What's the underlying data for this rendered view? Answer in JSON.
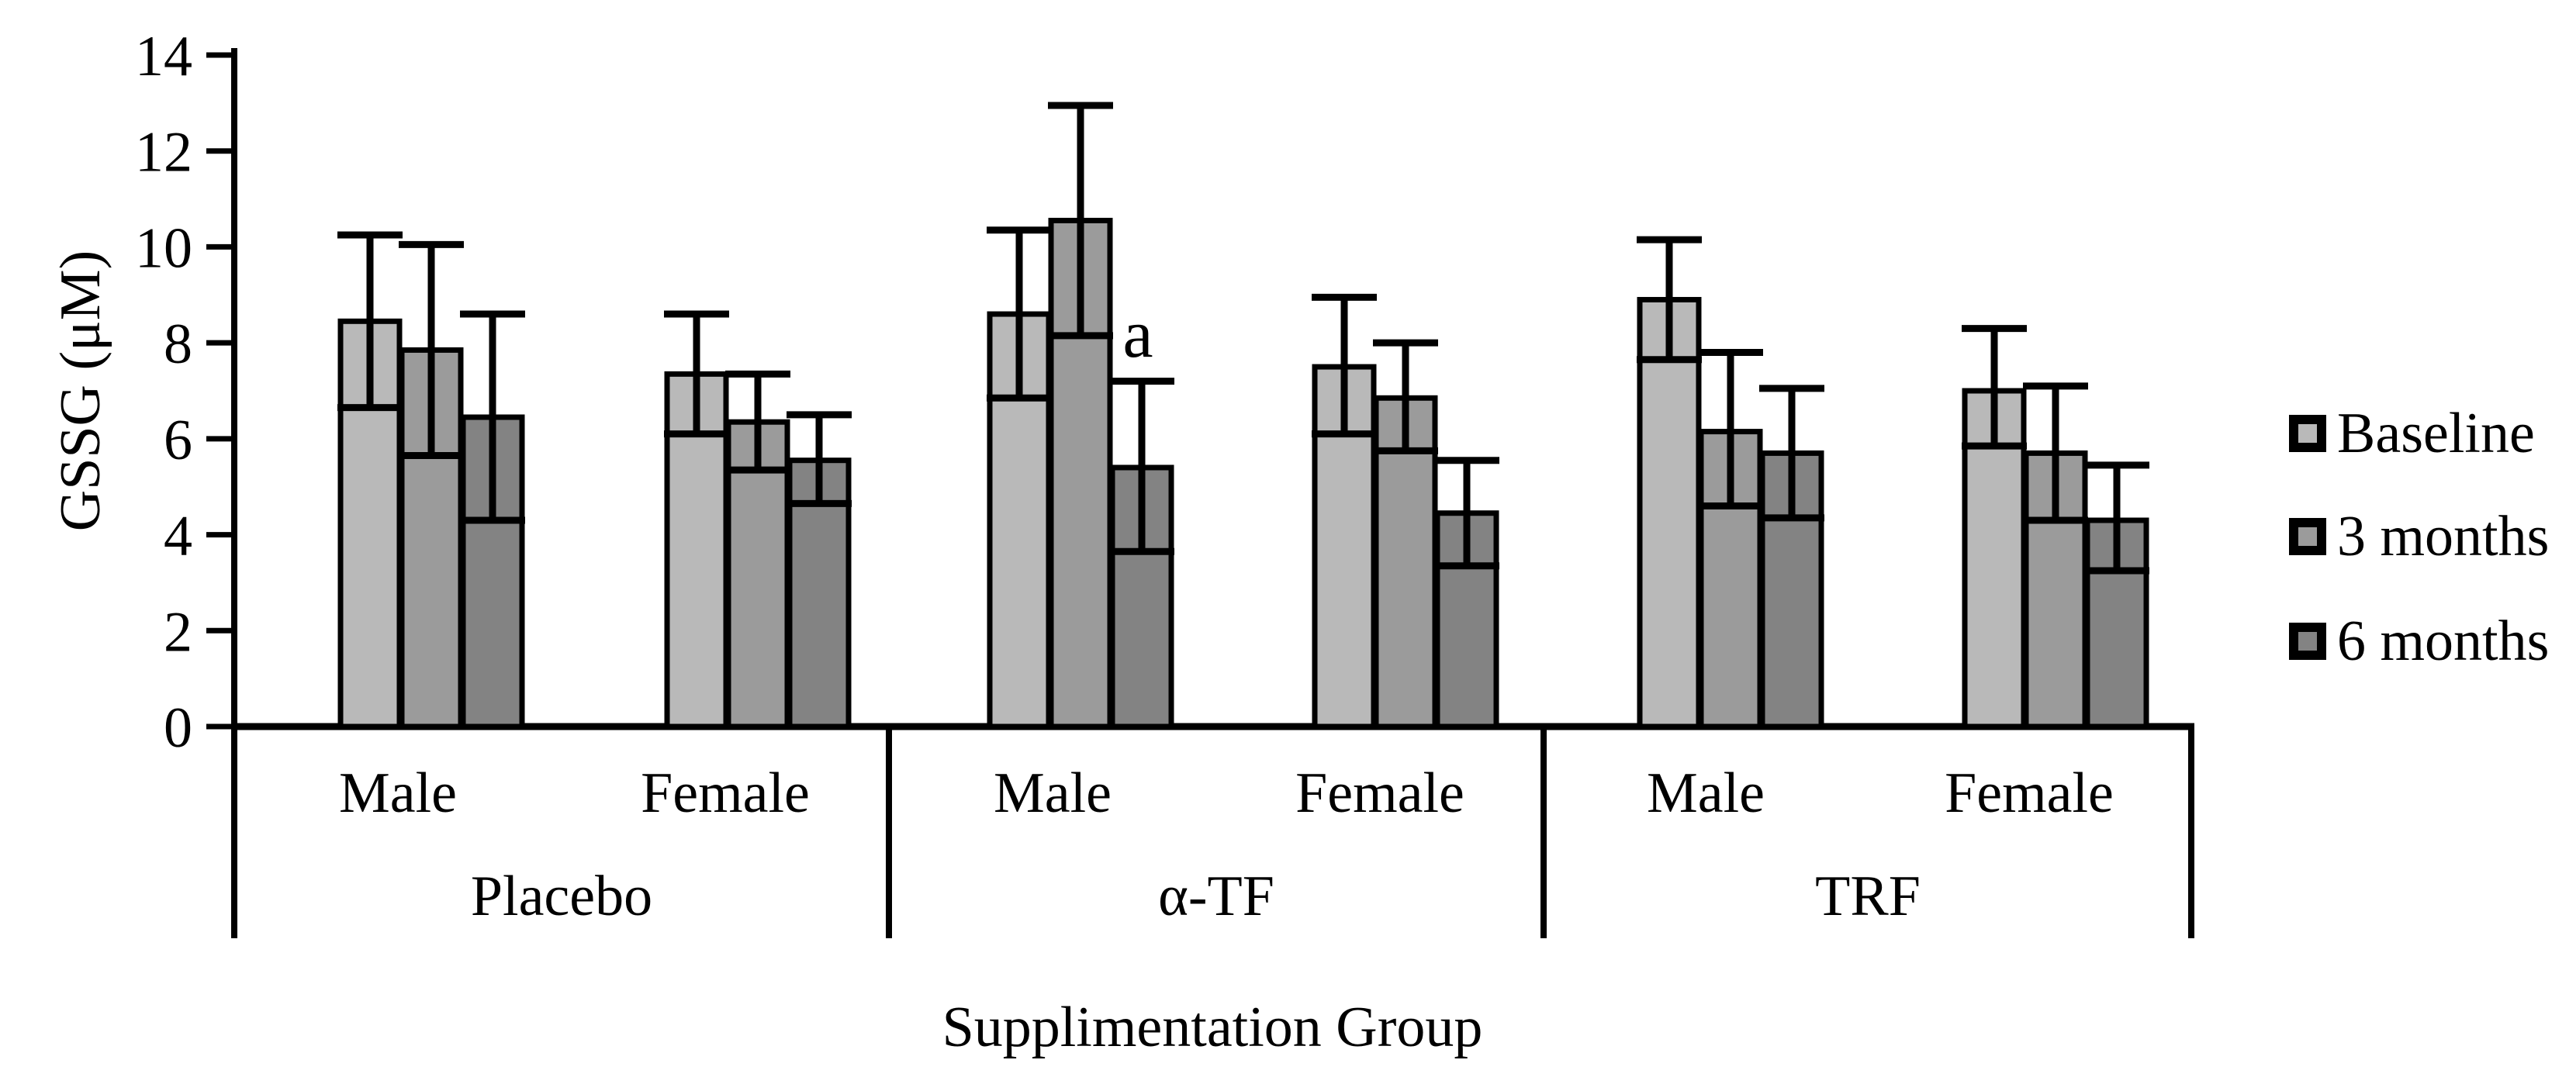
{
  "figure": {
    "y_axis_title": "GSSG (μM)",
    "x_axis_title": "Supplimentation Group"
  },
  "legend": {
    "position": "right",
    "entries": [
      {
        "label": "Baseline",
        "color": "#b9b9b9"
      },
      {
        "label": "3 months",
        "color": "#9b9b9b"
      },
      {
        "label": "6 months",
        "color": "#838383"
      }
    ]
  },
  "chart_data": {
    "type": "bar",
    "title": "",
    "xlabel": "Supplimentation Group",
    "ylabel": "GSSG (μM)",
    "ylim": [
      0,
      14
    ],
    "yticks": [
      0,
      2,
      4,
      6,
      8,
      10,
      12,
      14
    ],
    "grid": false,
    "legend_position": "right",
    "groups": [
      "Placebo",
      "α-TF",
      "TRF"
    ],
    "subgroups": [
      "Male",
      "Female"
    ],
    "categories": [
      "Placebo Male",
      "Placebo Female",
      "α-TF Male",
      "α-TF Female",
      "TRF Male",
      "TRF Female"
    ],
    "error_bars": true,
    "series": [
      {
        "name": "Baseline",
        "color": "#b9b9b9",
        "values": [
          8.45,
          7.35,
          8.6,
          7.5,
          8.9,
          7.0
        ],
        "err_high": [
          10.25,
          8.6,
          10.35,
          8.95,
          10.15,
          8.3
        ],
        "err_low": [
          6.65,
          6.1,
          6.85,
          6.1,
          7.65,
          5.85
        ]
      },
      {
        "name": "3 months",
        "color": "#9b9b9b",
        "values": [
          7.85,
          6.35,
          10.55,
          6.85,
          6.15,
          5.7
        ],
        "err_high": [
          10.05,
          7.35,
          12.95,
          8.0,
          7.8,
          7.1
        ],
        "err_low": [
          5.65,
          5.35,
          8.15,
          5.75,
          4.6,
          4.3
        ]
      },
      {
        "name": "6 months",
        "color": "#838383",
        "values": [
          6.45,
          5.55,
          5.4,
          4.45,
          5.7,
          4.3
        ],
        "err_high": [
          8.6,
          6.5,
          7.2,
          5.55,
          7.05,
          5.45
        ],
        "err_low": [
          4.3,
          4.65,
          3.65,
          3.35,
          4.35,
          3.25
        ]
      }
    ],
    "annotations": [
      {
        "text": "a",
        "category": "α-TF Male",
        "series": "6 months",
        "y": 8.2
      }
    ]
  }
}
